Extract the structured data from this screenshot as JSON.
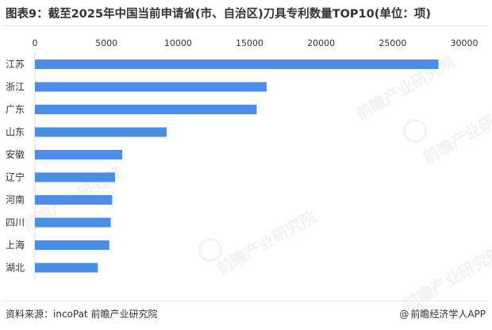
{
  "title": "图表9：截至2025年中国当前申请省(市、自治区)刀具专利数量TOP10(单位：项)",
  "source": "资料来源：incoPat 前瞻产业研究院",
  "brand": {
    "icon": "@",
    "name": "前瞻经济学人APP"
  },
  "watermarks": [
    {
      "text": "前瞻产业研究院"
    },
    {
      "text": "前瞻产业研究院"
    },
    {
      "text": "前瞻产业研究院"
    },
    {
      "text": "前瞻产业研究院"
    },
    {
      "text": "前瞻产业研究院"
    }
  ],
  "colors": {
    "bar": "#4a8ee8",
    "axis": "#d9d9d9"
  },
  "chart_data": {
    "type": "bar",
    "orientation": "horizontal",
    "categories": [
      "江苏",
      "浙江",
      "广东",
      "山东",
      "安徽",
      "辽宁",
      "河南",
      "四川",
      "上海",
      "湖北"
    ],
    "values": [
      28200,
      16200,
      15500,
      9200,
      6100,
      5600,
      5400,
      5300,
      5200,
      4400
    ],
    "ticks": [
      "0",
      "5000",
      "10000",
      "15000",
      "20000",
      "25000",
      "30000"
    ],
    "xlim": [
      0,
      30000
    ],
    "x_axis_position": "top",
    "grid": false,
    "legend": "none",
    "title": "图表9：截至2025年中国当前申请省(市、自治区)刀具专利数量TOP10(单位：项)"
  }
}
